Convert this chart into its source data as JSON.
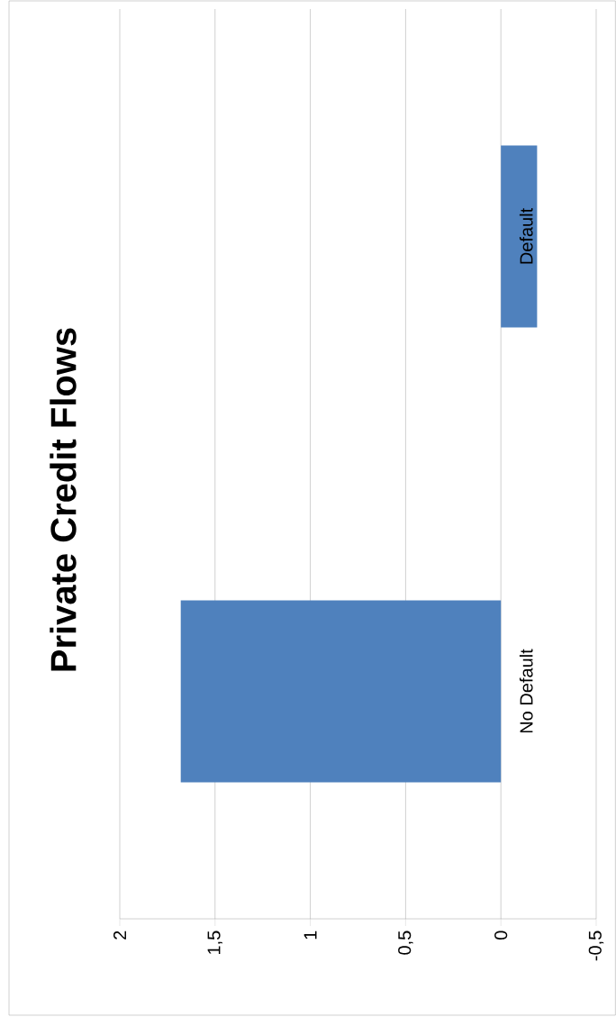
{
  "chart_data": {
    "type": "bar",
    "orientation": "horizontal",
    "title": "Private Credit Flows",
    "categories": [
      "Default",
      "No Default"
    ],
    "values": [
      -0.19,
      1.68
    ],
    "color": "#4f81bd",
    "xlim": [
      2,
      -0.5
    ],
    "xticks": [
      2,
      {
        "value": 1.5,
        "label": "1,5"
      },
      1,
      {
        "value": 0.5,
        "label": "0,5"
      },
      0,
      {
        "value": -0.5,
        "label": "-0,5"
      }
    ],
    "grid": "x"
  }
}
